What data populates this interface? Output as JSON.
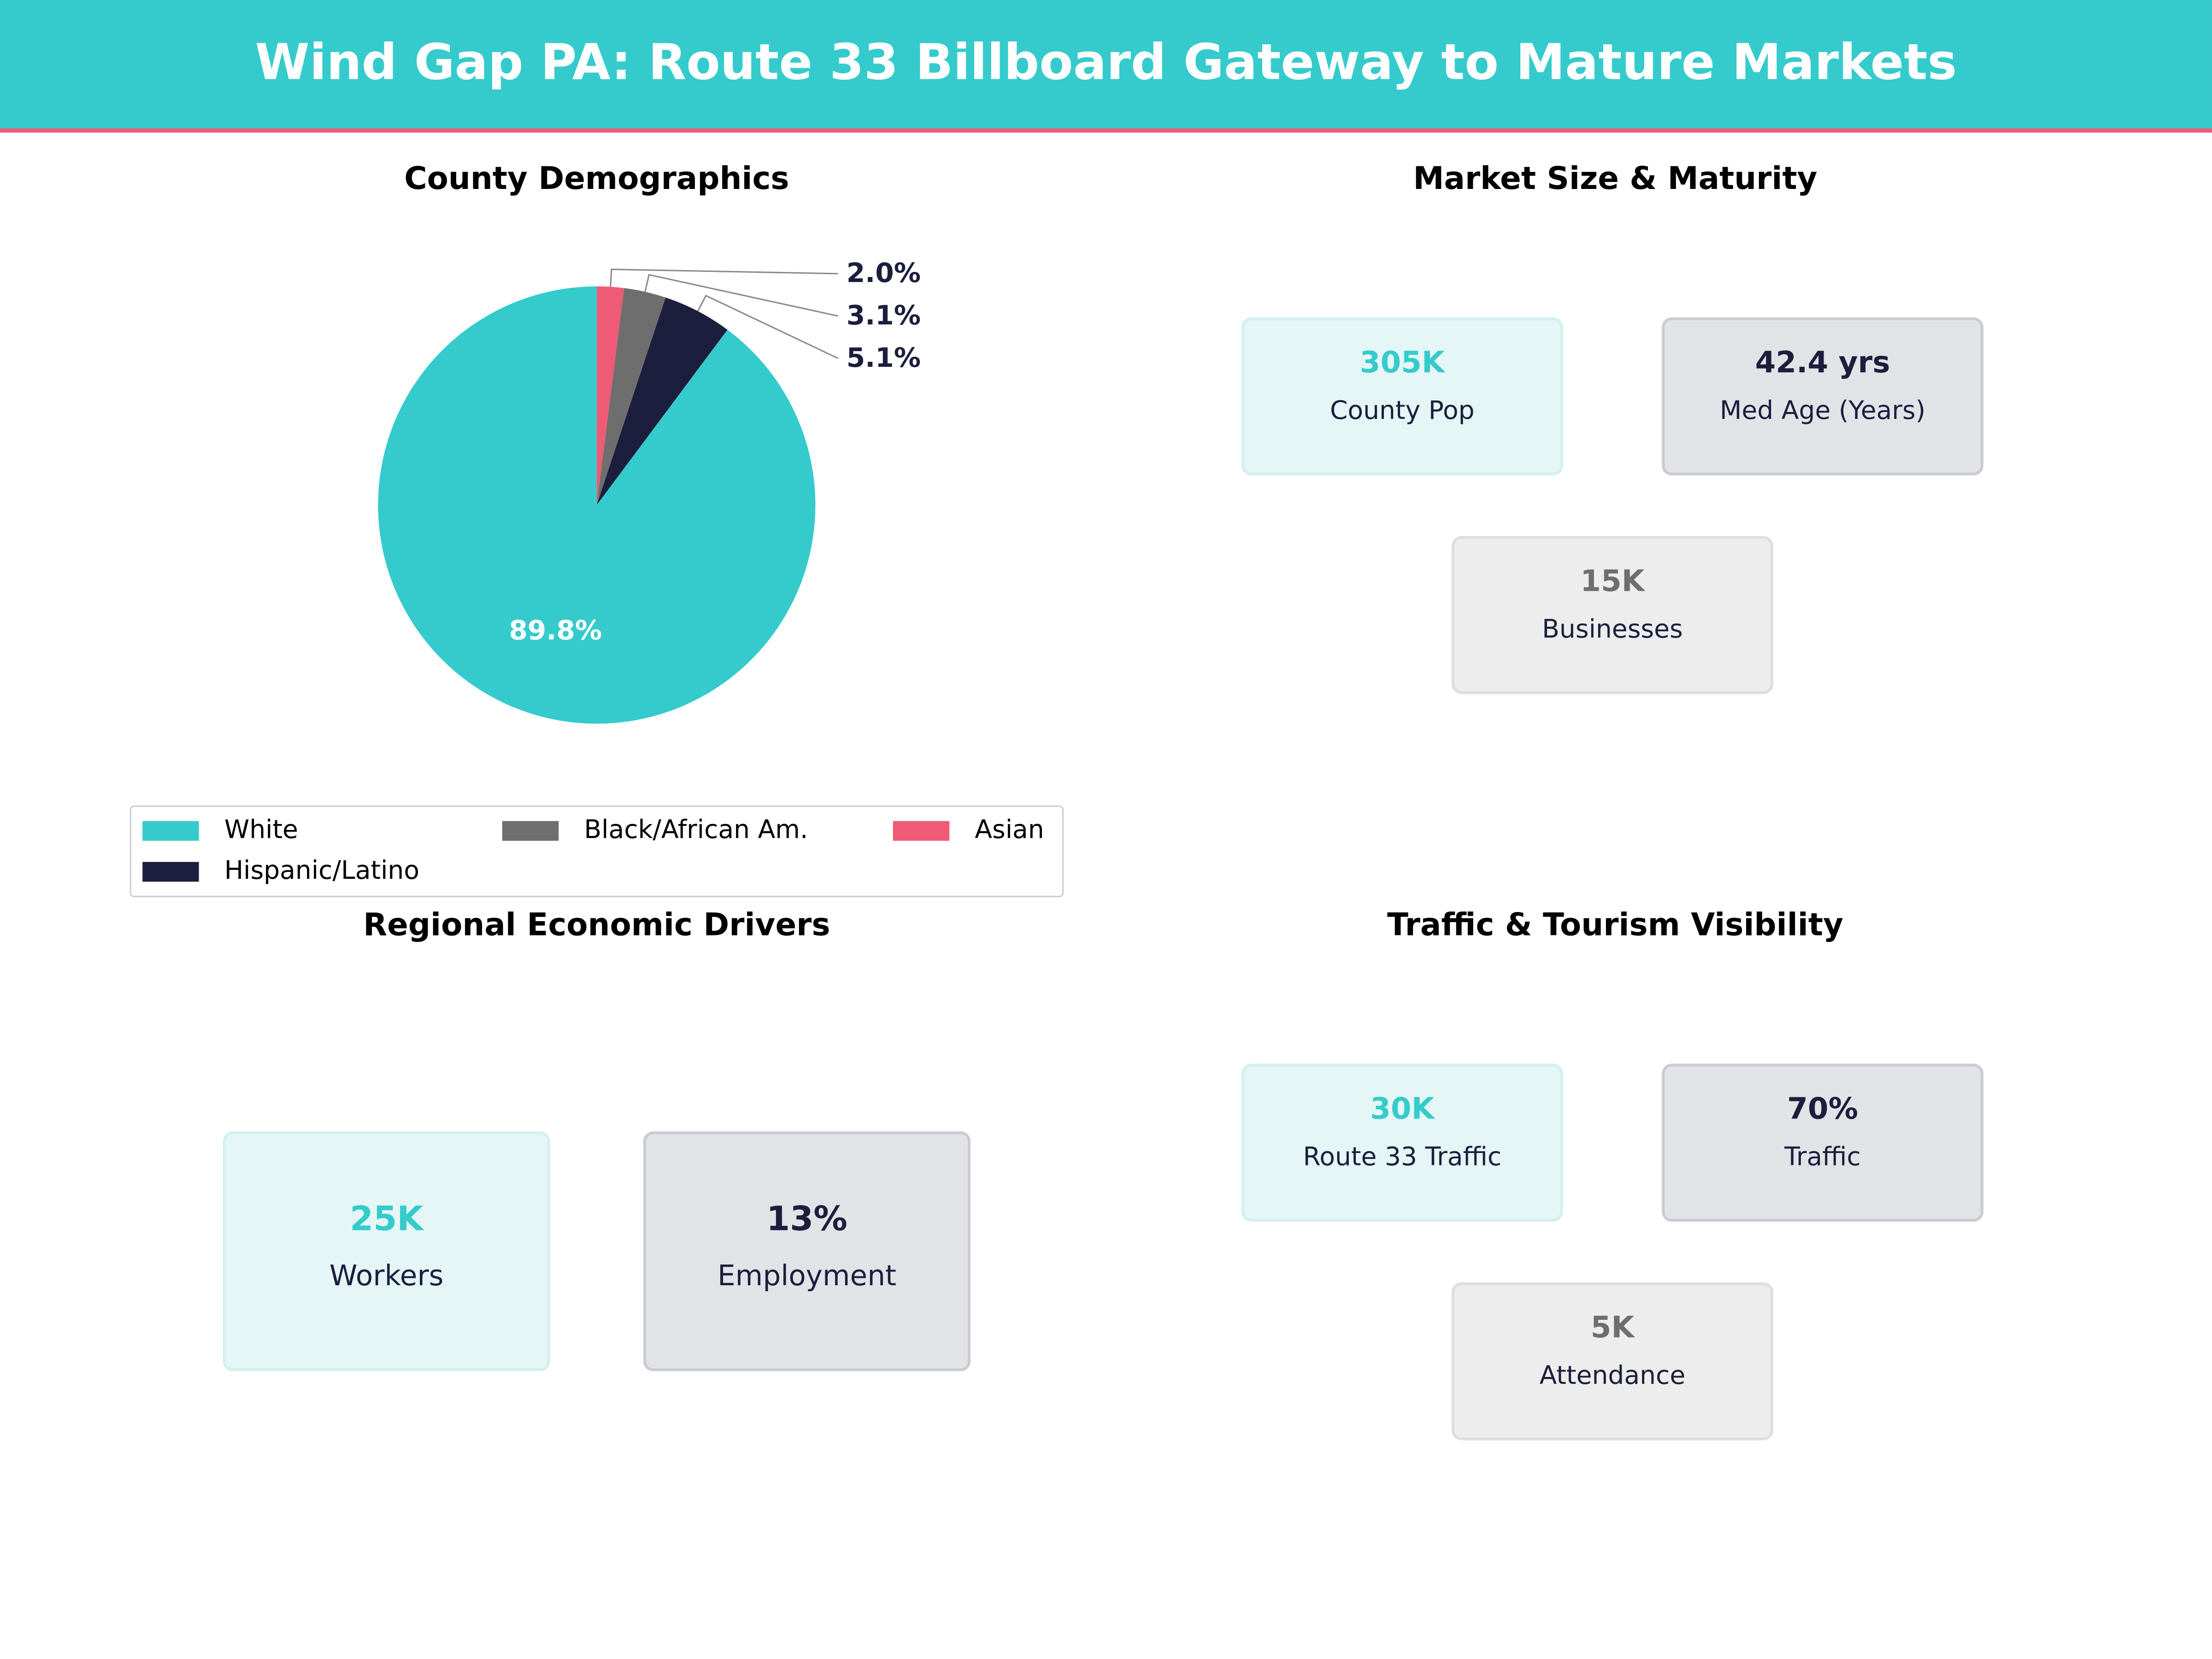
{
  "header": {
    "title": "Wind Gap PA: Route 33 Billboard Gateway to Mature Markets"
  },
  "chart_data": {
    "type": "pie",
    "title": "County Demographics",
    "categories": [
      "White",
      "Hispanic/Latino",
      "Black/African Am.",
      "Asian"
    ],
    "values": [
      89.8,
      5.1,
      3.1,
      2.0
    ],
    "labels": [
      "89.8%",
      "5.1%",
      "3.1%",
      "2.0%"
    ],
    "colors": [
      "#35CBCC",
      "#1B1E3C",
      "#6E6E6E",
      "#EF5B76"
    ],
    "legend": "bottom"
  },
  "market": {
    "title": "Market Size & Maturity",
    "cards": [
      {
        "value": "305K",
        "label": "County Pop"
      },
      {
        "value": "42.4 yrs",
        "label": "Med Age (Years)"
      },
      {
        "value": "15K",
        "label": "Businesses"
      }
    ]
  },
  "economic": {
    "title": "Regional Economic Drivers",
    "cards": [
      {
        "value": "25K",
        "label": "Workers"
      },
      {
        "value": "13%",
        "label": "Employment"
      }
    ]
  },
  "traffic": {
    "title": "Traffic & Tourism Visibility",
    "cards": [
      {
        "value": "30K",
        "label": "Route 33 Traffic"
      },
      {
        "value": "70%",
        "label": "Traffic"
      },
      {
        "value": "5K",
        "label": "Attendance"
      }
    ]
  }
}
